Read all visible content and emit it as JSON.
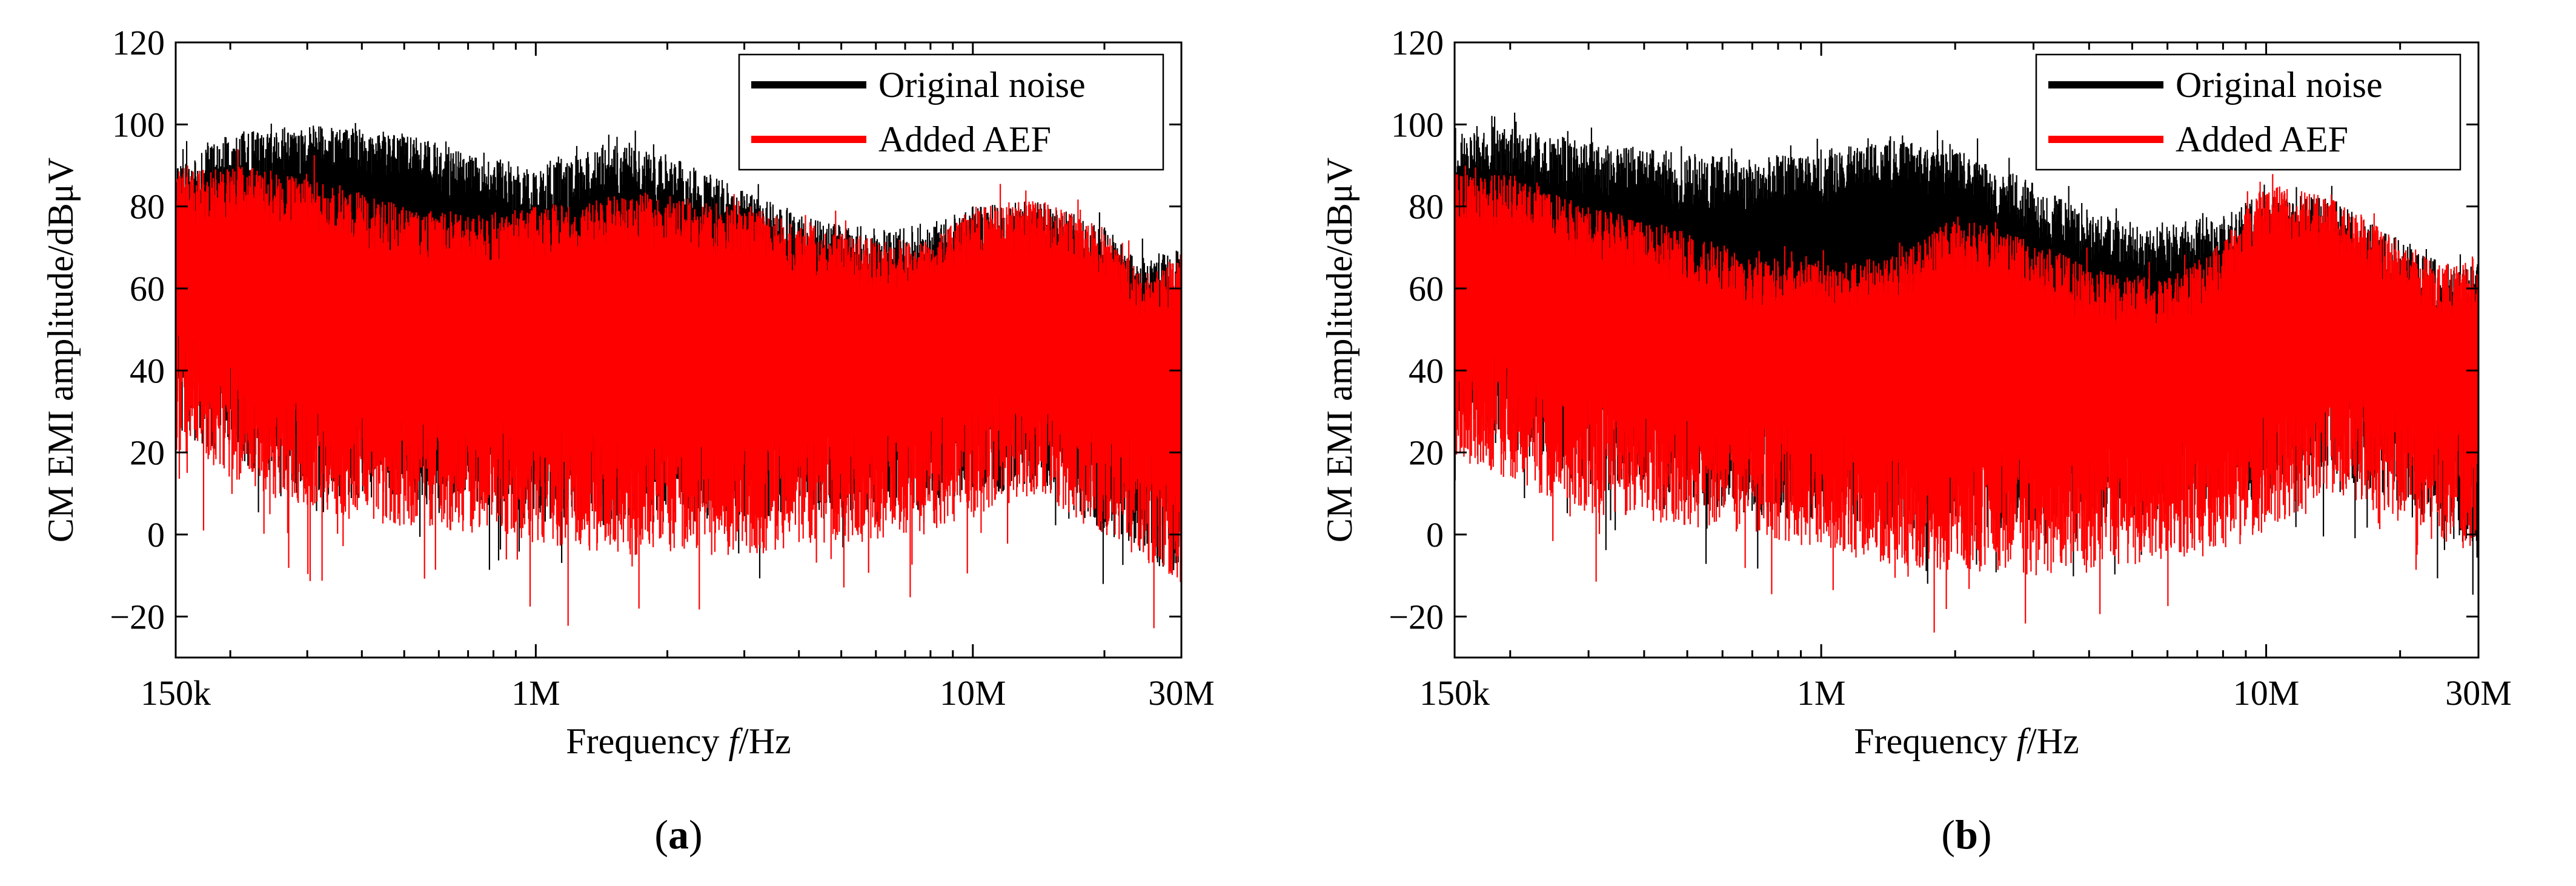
{
  "chart_data": [
    {
      "type": "line",
      "panel": "a",
      "caption": "(a)",
      "xscale": "log",
      "xlabel_prefix": "Frequency ",
      "xlabel_var": "f",
      "xlabel_suffix": "/Hz",
      "ylabel": "CM EMI amplitude/dBμV",
      "xlim": [
        150000,
        30000000
      ],
      "ylim": [
        -30,
        120
      ],
      "xticks": [
        150000,
        1000000,
        10000000,
        30000000
      ],
      "xtick_labels": [
        "150k",
        "1M",
        "10M",
        "30M"
      ],
      "yticks": [
        -20,
        0,
        20,
        40,
        60,
        80,
        100,
        120
      ],
      "ytick_labels": [
        "−20",
        "0",
        "20",
        "40",
        "60",
        "80",
        "100",
        "120"
      ],
      "legend_position": "top-right",
      "series": [
        {
          "name": "Original noise",
          "color": "#000000",
          "upper_envelope": {
            "x": [
              150000,
              200000,
              300000,
              500000,
              700000,
              1000000,
              1500000,
              2000000,
              3000000,
              4000000,
              6000000,
              8000000,
              10000000,
              14000000,
              20000000,
              25000000,
              30000000
            ],
            "y": [
              90,
              98,
              100,
              98,
              93,
              90,
              95,
              93,
              84,
              78,
              74,
              76,
              80,
              82,
              75,
              67,
              70
            ]
          },
          "noise_floor": {
            "x": [
              150000,
              300000,
              700000,
              1500000,
              3000000,
              8000000,
              14000000,
              30000000
            ],
            "y": [
              25,
              10,
              5,
              2,
              4,
              6,
              12,
              -12
            ]
          }
        },
        {
          "name": "Added AEF",
          "color": "#ff0000",
          "upper_envelope": {
            "x": [
              150000,
              200000,
              300000,
              500000,
              700000,
              1000000,
              1500000,
              2000000,
              3000000,
              4000000,
              6000000,
              8000000,
              10000000,
              14000000,
              20000000,
              25000000,
              30000000
            ],
            "y": [
              88,
              90,
              88,
              80,
              78,
              80,
              83,
              83,
              80,
              76,
              72,
              72,
              80,
              82,
              75,
              63,
              69
            ]
          },
          "noise_floor": {
            "x": [
              150000,
              300000,
              700000,
              1500000,
              3000000,
              8000000,
              14000000,
              30000000
            ],
            "y": [
              20,
              5,
              0,
              -5,
              -5,
              0,
              10,
              -12
            ]
          }
        }
      ]
    },
    {
      "type": "line",
      "panel": "b",
      "caption": "(b)",
      "xscale": "log",
      "xlabel_prefix": "Frequency ",
      "xlabel_var": "f",
      "xlabel_suffix": "/Hz",
      "ylabel": "CM EMI amplitude/dBμV",
      "xlim": [
        150000,
        30000000
      ],
      "ylim": [
        -30,
        120
      ],
      "xticks": [
        150000,
        1000000,
        10000000,
        30000000
      ],
      "xtick_labels": [
        "150k",
        "1M",
        "10M",
        "30M"
      ],
      "yticks": [
        -20,
        0,
        20,
        40,
        60,
        80,
        100,
        120
      ],
      "ytick_labels": [
        "−20",
        "0",
        "20",
        "40",
        "60",
        "80",
        "100",
        "120"
      ],
      "legend_position": "top-right",
      "series": [
        {
          "name": "Original noise",
          "color": "#000000",
          "upper_envelope": {
            "x": [
              150000,
              200000,
              300000,
              500000,
              700000,
              1000000,
              1500000,
              2000000,
              3000000,
              4000000,
              6000000,
              8000000,
              10000000,
              14000000,
              20000000,
              25000000,
              30000000
            ],
            "y": [
              98,
              99,
              96,
              93,
              92,
              94,
              96,
              94,
              86,
              78,
              76,
              78,
              84,
              82,
              72,
              66,
              66
            ]
          },
          "noise_floor": {
            "x": [
              150000,
              300000,
              700000,
              1500000,
              3000000,
              8000000,
              14000000,
              30000000
            ],
            "y": [
              25,
              12,
              5,
              0,
              2,
              6,
              15,
              -5
            ]
          }
        },
        {
          "name": "Added AEF",
          "color": "#ff0000",
          "upper_envelope": {
            "x": [
              150000,
              200000,
              300000,
              500000,
              700000,
              1000000,
              1500000,
              2000000,
              3000000,
              4000000,
              6000000,
              8000000,
              10000000,
              14000000,
              20000000,
              25000000,
              30000000
            ],
            "y": [
              88,
              88,
              80,
              74,
              68,
              66,
              68,
              78,
              72,
              65,
              62,
              72,
              86,
              82,
              72,
              66,
              68
            ]
          },
          "noise_floor": {
            "x": [
              150000,
              300000,
              700000,
              1500000,
              3000000,
              8000000,
              14000000,
              30000000
            ],
            "y": [
              18,
              5,
              0,
              -8,
              -10,
              -5,
              10,
              -5
            ]
          }
        }
      ]
    }
  ]
}
